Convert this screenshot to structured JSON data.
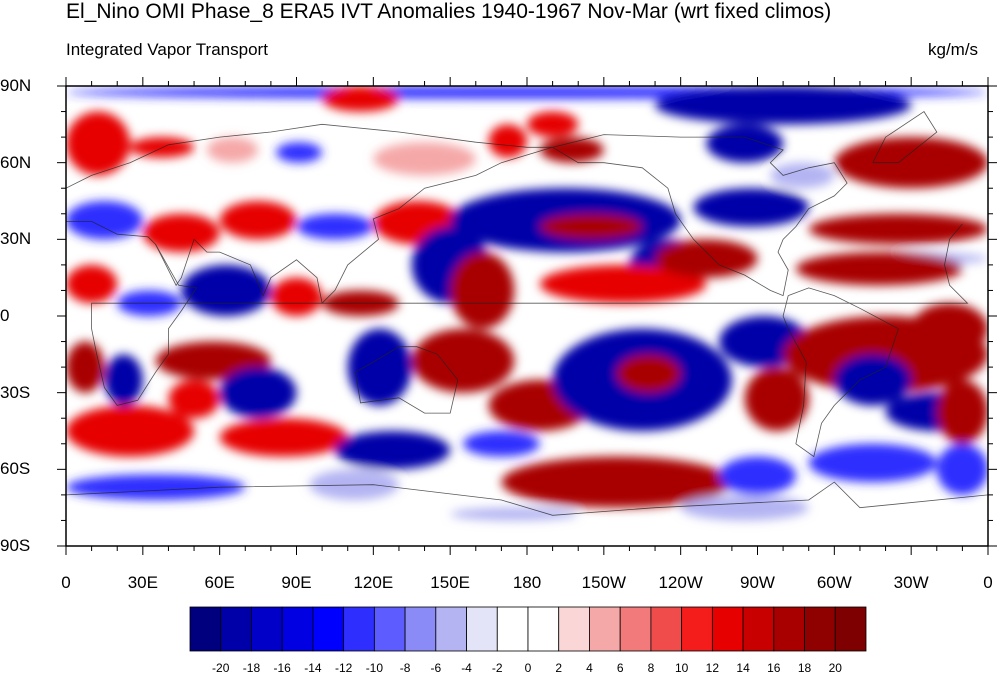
{
  "title": "El_Nino OMI Phase_8 ERA5 IVT Anomalies 1940-1967 Nov-Mar (wrt fixed climos)",
  "subtitle_left": "Integrated Vapor Transport",
  "subtitle_right": "kg/m/s",
  "lat_labels": [
    "90N",
    "60N",
    "30N",
    "0",
    "30S",
    "60S",
    "90S"
  ],
  "lon_labels": [
    "0",
    "30E",
    "60E",
    "90E",
    "120E",
    "150E",
    "180",
    "150W",
    "120W",
    "90W",
    "60W",
    "30W",
    "0"
  ],
  "colorbar": {
    "labels": [
      "-20",
      "-18",
      "-16",
      "-14",
      "-12",
      "-10",
      "-8",
      "-6",
      "-4",
      "-2",
      "0",
      "2",
      "4",
      "6",
      "8",
      "10",
      "12",
      "14",
      "16",
      "18",
      "20"
    ],
    "colors": [
      "#00007f",
      "#0000a8",
      "#0000c8",
      "#0000e3",
      "#0000ff",
      "#2e2eff",
      "#5c5cff",
      "#8b8bf7",
      "#b4b4f3",
      "#e4e4f8",
      "#ffffff",
      "#ffffff",
      "#fad6d6",
      "#f5a8a8",
      "#f27a7a",
      "#f04c4c",
      "#f51c1c",
      "#e60000",
      "#c80000",
      "#a80000",
      "#8f0000",
      "#7f0000"
    ]
  },
  "map_data": {
    "projection": "cylindrical-equidistant",
    "lon_range": [
      0,
      360
    ],
    "lat_range": [
      -90,
      90
    ],
    "variable": "IVT anomaly",
    "units": "kg/m/s",
    "value_range": [
      -20,
      20
    ]
  }
}
